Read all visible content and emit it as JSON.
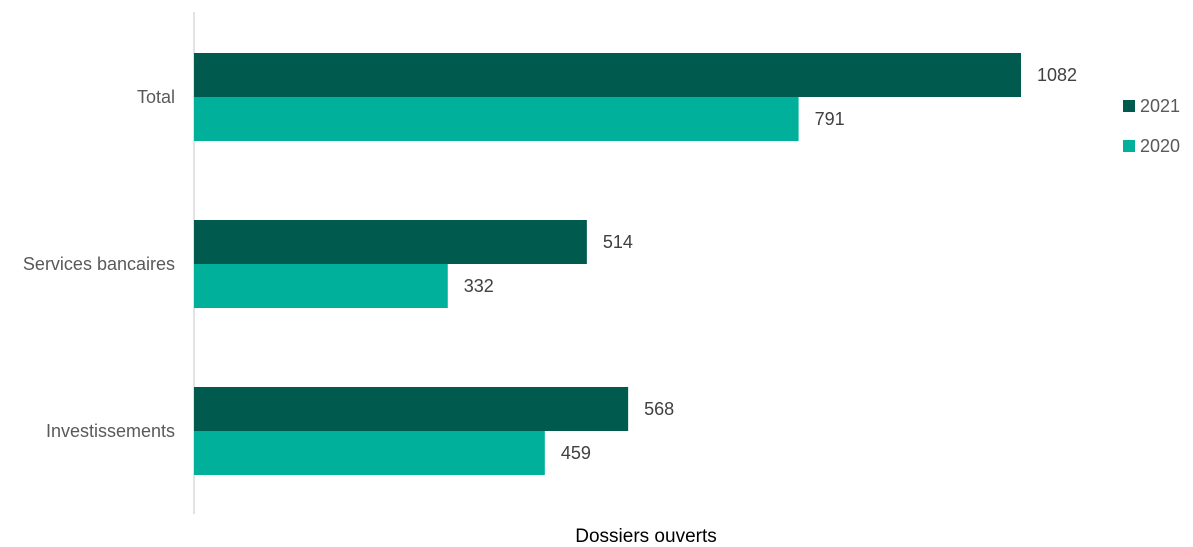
{
  "chart_data": {
    "type": "bar",
    "orientation": "horizontal",
    "categories": [
      "Total",
      "Services bancaires",
      "Investissements"
    ],
    "series": [
      {
        "name": "2021",
        "values": [
          1082,
          514,
          568
        ],
        "color": "#005a4e"
      },
      {
        "name": "2020",
        "values": [
          791,
          332,
          459
        ],
        "color": "#00b09b"
      }
    ],
    "xlabel": "Dossiers ouverts",
    "ylabel": "",
    "xlim": [
      0,
      1300
    ],
    "grid": false,
    "legend": "right"
  }
}
